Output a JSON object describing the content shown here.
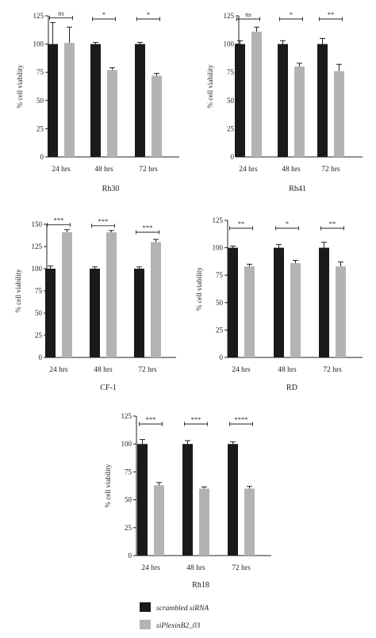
{
  "colors": {
    "scrambled": "#1a1a1a",
    "siplexin": "#b3b3b3"
  },
  "legend": [
    {
      "label": "scrambled siRNA",
      "color": "#1a1a1a"
    },
    {
      "label": "siPlexinB2_03",
      "color": "#b3b3b3"
    }
  ],
  "chart_data": [
    {
      "type": "bar",
      "title": "Rh30",
      "ylabel": "% cell viability",
      "categories": [
        "24 hrs",
        "48 hrs",
        "72 hrs"
      ],
      "ylim": [
        0,
        125
      ],
      "yticks": [
        0,
        25,
        50,
        75,
        100,
        125
      ],
      "series": [
        {
          "name": "scrambled siRNA",
          "values": [
            100,
            100,
            100
          ],
          "errors": [
            19,
            1.5,
            1.5
          ]
        },
        {
          "name": "siPlexinB2_03",
          "values": [
            101,
            77,
            72
          ],
          "errors": [
            14,
            2,
            2
          ]
        }
      ],
      "significance": [
        "ns",
        "*",
        "*"
      ]
    },
    {
      "type": "bar",
      "title": "Rh41",
      "ylabel": "% cell viability",
      "categories": [
        "24  hrs",
        "48  hrs",
        "72  hrs"
      ],
      "ylim": [
        0,
        125
      ],
      "yticks": [
        0,
        25,
        50,
        75,
        100,
        125
      ],
      "series": [
        {
          "name": "scrambled siRNA",
          "values": [
            100,
            100,
            100
          ],
          "errors": [
            3,
            3,
            5
          ]
        },
        {
          "name": "siPlexinB2_03",
          "values": [
            111,
            80,
            76
          ],
          "errors": [
            4,
            3,
            6
          ]
        }
      ],
      "significance": [
        "ns",
        "*",
        "**"
      ]
    },
    {
      "type": "bar",
      "title": "CF-1",
      "ylabel": "% cell viability",
      "categories": [
        "24 hrs",
        "48 hrs",
        "72 hrs"
      ],
      "ylim": [
        0,
        150
      ],
      "yticks": [
        0,
        25,
        50,
        75,
        100,
        125,
        150
      ],
      "series": [
        {
          "name": "scrambled siRNA",
          "values": [
            100,
            100,
            100
          ],
          "errors": [
            3,
            2,
            2
          ]
        },
        {
          "name": "siPlexinB2_03",
          "values": [
            141,
            141,
            130
          ],
          "errors": [
            3,
            2,
            3
          ]
        }
      ],
      "significance": [
        "***",
        "***",
        "***"
      ]
    },
    {
      "type": "bar",
      "title": "RD",
      "ylabel": "% cell viability",
      "categories": [
        "24 hrs",
        "48 hrs",
        "72 hrs"
      ],
      "ylim": [
        0,
        125
      ],
      "yticks": [
        0,
        25,
        50,
        75,
        100,
        125
      ],
      "series": [
        {
          "name": "scrambled siRNA",
          "values": [
            100,
            100,
            100
          ],
          "errors": [
            1.5,
            3,
            5
          ]
        },
        {
          "name": "siPlexinB2_03",
          "values": [
            83,
            86,
            83
          ],
          "errors": [
            2,
            2.5,
            4
          ]
        }
      ],
      "significance": [
        "**",
        "*",
        "**"
      ]
    },
    {
      "type": "bar",
      "title": "Rh18",
      "ylabel": "% cell viability",
      "categories": [
        "24 hrs",
        "48 hrs",
        "72 hrs"
      ],
      "ylim": [
        0,
        125
      ],
      "yticks": [
        0,
        25,
        50,
        75,
        100,
        125
      ],
      "series": [
        {
          "name": "scrambled siRNA",
          "values": [
            100,
            100,
            100
          ],
          "errors": [
            4,
            3,
            2
          ]
        },
        {
          "name": "siPlexinB2_03",
          "values": [
            63,
            60,
            60
          ],
          "errors": [
            2.5,
            1.5,
            2
          ]
        }
      ],
      "significance": [
        "***",
        "***",
        "****"
      ]
    }
  ]
}
